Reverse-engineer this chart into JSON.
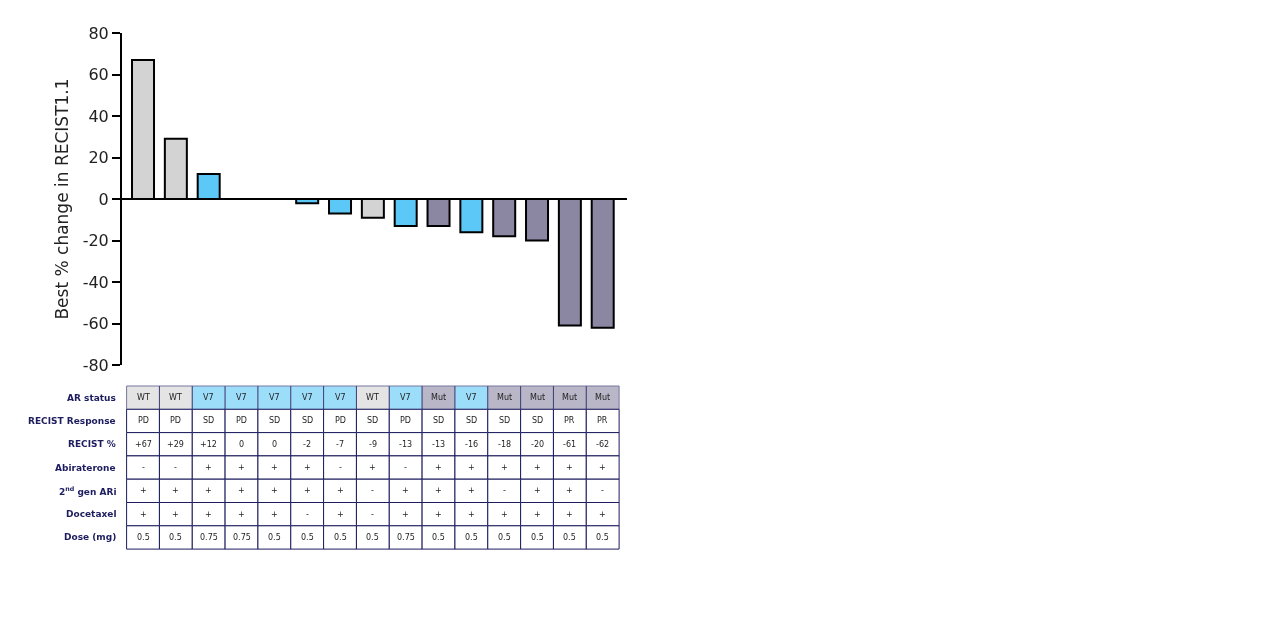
{
  "chart_data": {
    "type": "bar",
    "ylabel": "Best % change in RECIST1.1",
    "categories": [
      null,
      null,
      null,
      null,
      null,
      null,
      null,
      null,
      null,
      null,
      null,
      null,
      null,
      null,
      null
    ],
    "values": [
      67,
      29,
      12,
      0,
      0,
      -2,
      -7,
      -9,
      -13,
      -13,
      -16,
      -18,
      -20,
      -61,
      -62
    ],
    "colors": [
      "#d3d3d3",
      "#d3d3d3",
      "#5bc8f8",
      "#5bc8f8",
      "#5bc8f8",
      "#5bc8f8",
      "#5bc8f8",
      "#d3d3d3",
      "#5bc8f8",
      "#8b87a3",
      "#5bc8f8",
      "#8b87a3",
      "#8b87a3",
      "#8b87a3",
      "#8b87a3"
    ],
    "ylim": [
      -80,
      80
    ],
    "yticks": [
      -80,
      -60,
      -40,
      -20,
      0,
      20,
      40,
      60,
      80
    ],
    "annotations": [
      "AR status",
      "WT",
      "WT",
      "V7",
      "V7",
      "V7",
      "V7",
      "V7",
      "WT",
      "V7",
      "Mut",
      "V7",
      "Mut",
      "Mut",
      "Mut",
      "Mut",
      "RECIST Response",
      "PD",
      "PD",
      "SD",
      "PD",
      "SD",
      "SD",
      "PD",
      "SD",
      "PD",
      "SD",
      "SD",
      "SD",
      "SD",
      "PR",
      "PR",
      "RECIST %",
      "+67",
      "+29",
      "+12",
      "0",
      "0",
      "-2",
      "-7",
      "-9",
      "-13",
      "-13",
      "-16",
      "-18",
      "-20",
      "-61",
      "-62",
      "Abiraterone",
      "-",
      "-",
      "+",
      "+",
      "+",
      "+",
      "-",
      "+",
      "-",
      "+",
      "+",
      "+",
      "+",
      "+",
      "+",
      "2$^{nd}$ gen ARi",
      "+",
      "+",
      "+",
      "+",
      "+",
      "+",
      "+",
      "-",
      "+",
      "+",
      "+",
      "-",
      "+",
      "+",
      "-",
      "Docetaxel",
      "+",
      "+",
      "+",
      "+",
      "+",
      "-",
      "+",
      "-",
      "+",
      "+",
      "+",
      "+",
      "+",
      "+",
      "+",
      "Dose (mg)",
      "0.5",
      "0.5",
      "0.75",
      "0.75",
      "0.5",
      "0.5",
      "0.5",
      "0.5",
      "0.75",
      "0.5",
      "0.5",
      "0.5",
      "0.5",
      "0.5",
      "0.5"
    ]
  }
}
